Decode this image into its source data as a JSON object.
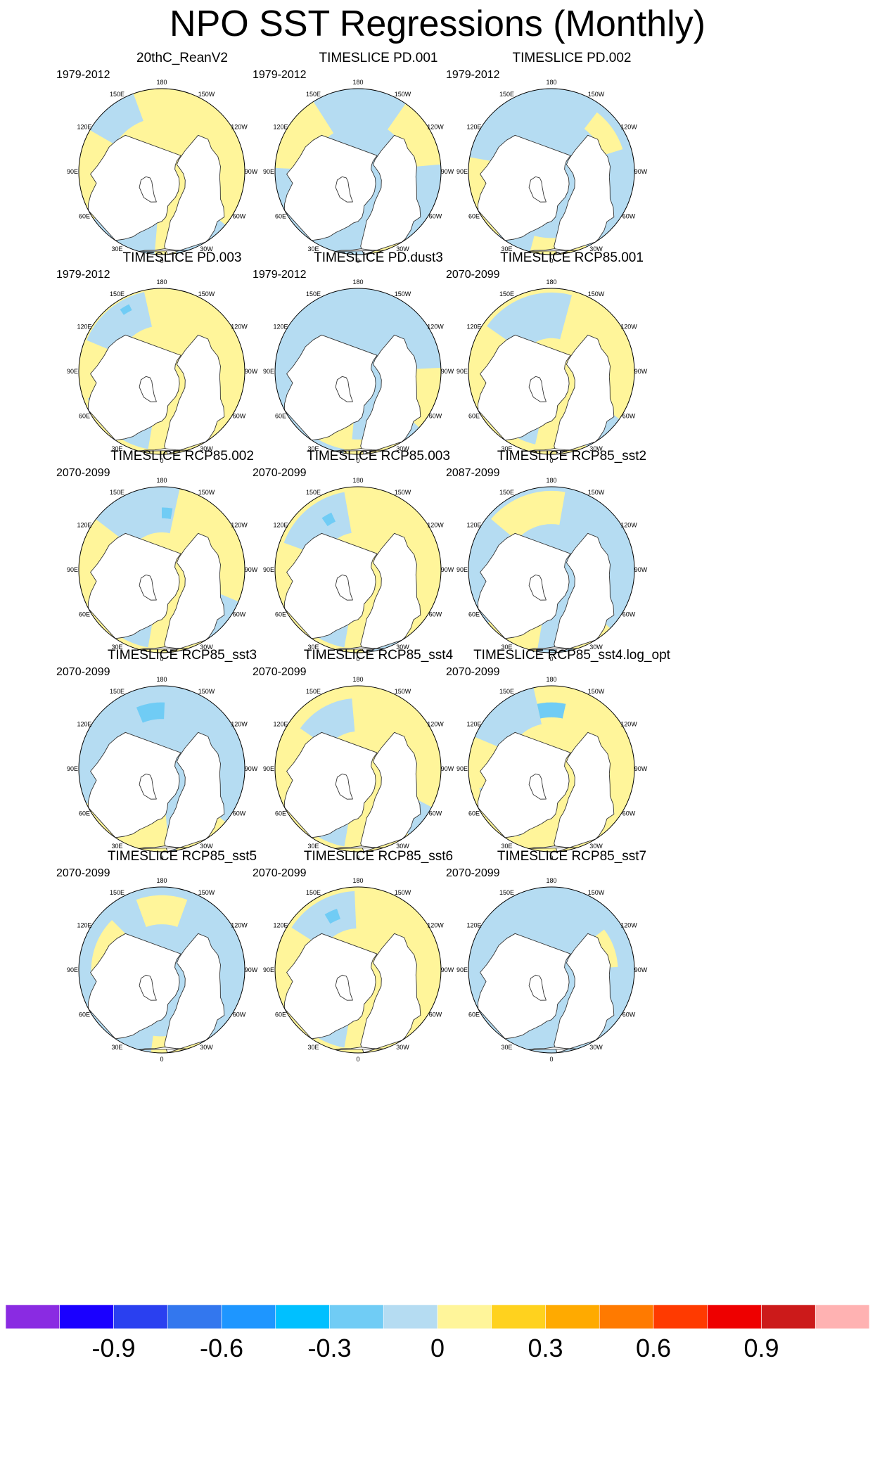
{
  "chart_data": {
    "type": "heatmap",
    "title": "NPO SST Regressions (Monthly)",
    "projection": "north polar stereographic",
    "longitude_labels": [
      "180",
      "150E",
      "120E",
      "90E",
      "60E",
      "30E",
      "0",
      "30W",
      "60W",
      "90W",
      "120W",
      "150W"
    ],
    "panels": [
      {
        "title": "20thC_ReanV2",
        "period": "1979-2012"
      },
      {
        "title": "TIMESLICE PD.001",
        "period": "1979-2012"
      },
      {
        "title": "TIMESLICE PD.002",
        "period": "1979-2012"
      },
      {
        "title": "TIMESLICE PD.003",
        "period": "1979-2012"
      },
      {
        "title": "TIMESLICE PD.dust3",
        "period": "1979-2012"
      },
      {
        "title": "TIMESLICE RCP85.001",
        "period": "2070-2099"
      },
      {
        "title": "TIMESLICE RCP85.002",
        "period": "2070-2099"
      },
      {
        "title": "TIMESLICE RCP85.003",
        "period": "2070-2099"
      },
      {
        "title": "TIMESLICE RCP85_sst2",
        "period": "2087-2099"
      },
      {
        "title": "TIMESLICE RCP85_sst3",
        "period": "2070-2099"
      },
      {
        "title": "TIMESLICE RCP85_sst4",
        "period": "2070-2099"
      },
      {
        "title": "TIMESLICE RCP85_sst4.log_opt",
        "period": "2070-2099"
      },
      {
        "title": "TIMESLICE RCP85_sst5",
        "period": "2070-2099"
      },
      {
        "title": "TIMESLICE RCP85_sst6",
        "period": "2070-2099"
      },
      {
        "title": "TIMESLICE RCP85_sst7",
        "period": "2070-2099"
      }
    ],
    "colorbar": {
      "levels": [
        -1.05,
        -0.9,
        -0.75,
        -0.6,
        -0.45,
        -0.3,
        -0.15,
        0,
        0.15,
        0.3,
        0.45,
        0.6,
        0.75,
        0.9,
        1.05
      ],
      "colors": [
        "#8a2be2",
        "#1a00ff",
        "#2a40f0",
        "#3377ee",
        "#1e96ff",
        "#00c0ff",
        "#70ccf5",
        "#b5dcf2",
        "#fff59a",
        "#ffd21e",
        "#ffaa00",
        "#ff7a00",
        "#ff3a00",
        "#ee0000",
        "#cc1a1a",
        "#ffb2b2"
      ],
      "tick_labels": [
        "-0.9",
        "-0.6",
        "-0.3",
        "0",
        "0.3",
        "0.6",
        "0.9"
      ],
      "tick_values": [
        -0.9,
        -0.6,
        -0.3,
        0,
        0.3,
        0.6,
        0.9
      ]
    }
  },
  "colors": {
    "positive_fill": "#fff59a",
    "negative_fill": "#b5dcf2",
    "strong_negative_fill": "#70ccf5",
    "land_fill": "#ffffff",
    "coast_stroke": "#333333"
  }
}
